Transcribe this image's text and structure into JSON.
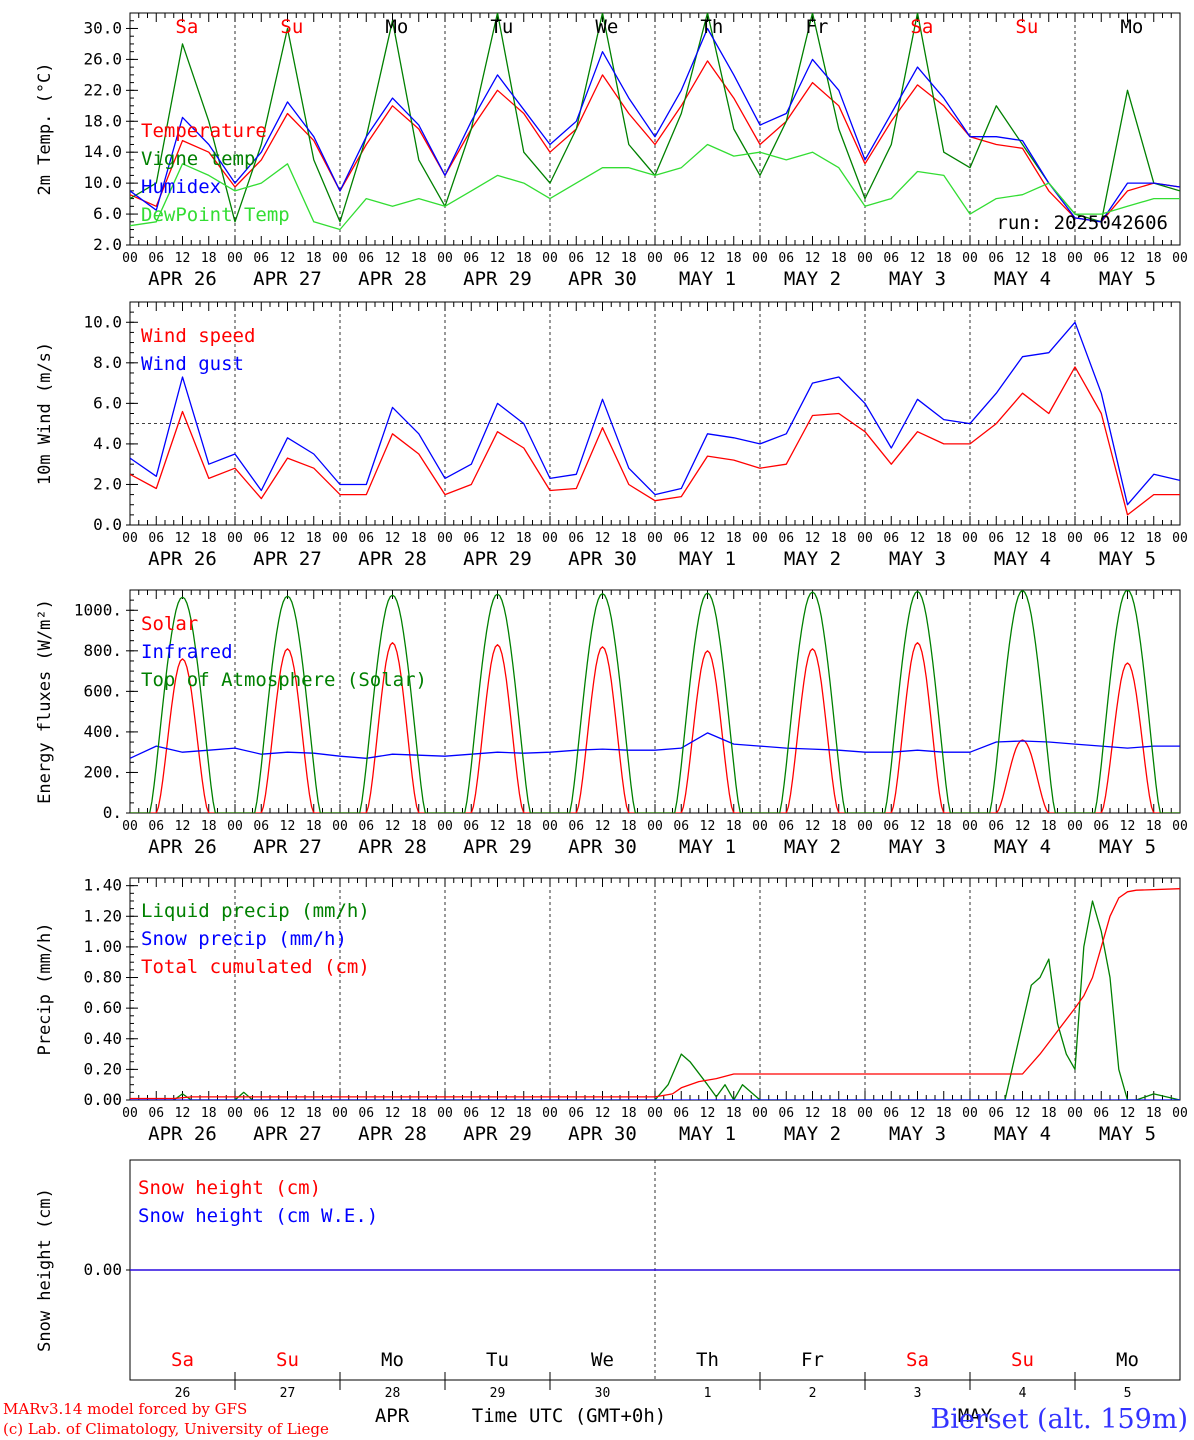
{
  "chart_data": [
    {
      "type": "line",
      "ylabel": "2m Temp. (°C)",
      "ylim": [
        2,
        32
      ],
      "yticks": [
        "30.0",
        "26.0",
        "22.0",
        "18.0",
        "14.0",
        "10.0",
        "6.0",
        "2.0"
      ],
      "yticks_values": [
        30,
        26,
        22,
        18,
        14,
        10,
        6,
        2
      ],
      "annotation": "run: 2025042606",
      "days": [
        {
          "label": "Sa",
          "color": "#ff0000"
        },
        {
          "label": "Su",
          "color": "#ff0000"
        },
        {
          "label": "Mo",
          "color": "#000000"
        },
        {
          "label": "Tu",
          "color": "#000000"
        },
        {
          "label": "We",
          "color": "#000000"
        },
        {
          "label": "Th",
          "color": "#000000"
        },
        {
          "label": "Fr",
          "color": "#000000"
        },
        {
          "label": "Sa",
          "color": "#ff0000"
        },
        {
          "label": "Su",
          "color": "#ff0000"
        },
        {
          "label": "Mo",
          "color": "#000000"
        }
      ],
      "series": [
        {
          "name": "Temperature",
          "color": "#ff0000",
          "x": [
            0,
            6,
            12,
            18,
            24,
            30,
            36,
            42,
            48,
            54,
            60,
            66,
            72,
            78,
            84,
            90,
            96,
            102,
            108,
            114,
            120,
            126,
            132,
            138,
            144,
            150,
            156,
            162,
            168,
            174,
            180,
            186,
            192,
            198,
            204,
            210,
            216,
            222,
            228,
            234,
            240
          ],
          "values": [
            8.5,
            7,
            15.5,
            14,
            9.5,
            13,
            19,
            15.5,
            9,
            15,
            20,
            17,
            11,
            17,
            22,
            19,
            14,
            17,
            24,
            19,
            15,
            20,
            25.8,
            21,
            15,
            18,
            23,
            20,
            12.5,
            18,
            22.7,
            20,
            16,
            15,
            14.5,
            9,
            5.5,
            5,
            9,
            10,
            9.5
          ]
        },
        {
          "name": "Vigne temp",
          "color": "#008000",
          "x": [
            0,
            6,
            12,
            18,
            24,
            30,
            36,
            42,
            48,
            54,
            60,
            66,
            72,
            78,
            84,
            90,
            96,
            102,
            108,
            114,
            120,
            126,
            132,
            138,
            144,
            150,
            156,
            162,
            168,
            174,
            180,
            186,
            192,
            198,
            204,
            210,
            216,
            222,
            228,
            234,
            240
          ],
          "values": [
            8,
            10,
            28,
            18,
            5,
            15,
            30,
            13,
            5,
            16,
            31,
            13,
            7,
            17,
            32,
            14,
            10,
            17,
            32,
            15,
            11,
            19,
            32,
            17,
            11,
            18,
            32,
            17,
            8,
            15,
            32,
            14,
            12,
            20,
            15,
            10,
            6,
            5,
            22,
            10,
            9
          ]
        },
        {
          "name": "Humidex",
          "color": "#0000ff",
          "x": [
            0,
            6,
            12,
            18,
            24,
            30,
            36,
            42,
            48,
            54,
            60,
            66,
            72,
            78,
            84,
            90,
            96,
            102,
            108,
            114,
            120,
            126,
            132,
            138,
            144,
            150,
            156,
            162,
            168,
            174,
            180,
            186,
            192,
            198,
            204,
            210,
            216,
            222,
            228,
            234,
            240
          ],
          "values": [
            9,
            6.5,
            18.5,
            15,
            10,
            14,
            20.5,
            16,
            9,
            16,
            21,
            17.5,
            11,
            18,
            24,
            19.5,
            15,
            18,
            27,
            21,
            16,
            22,
            30,
            24,
            17.5,
            19,
            26,
            22,
            13,
            19,
            25,
            21,
            16,
            16,
            15.5,
            10,
            5.5,
            5,
            10,
            10,
            9.5
          ]
        },
        {
          "name": "DewPoint Temp",
          "color": "#33dd33",
          "x": [
            0,
            6,
            12,
            18,
            24,
            30,
            36,
            42,
            48,
            54,
            60,
            66,
            72,
            78,
            84,
            90,
            96,
            102,
            108,
            114,
            120,
            126,
            132,
            138,
            144,
            150,
            156,
            162,
            168,
            174,
            180,
            186,
            192,
            198,
            204,
            210,
            216,
            222,
            228,
            234,
            240
          ],
          "values": [
            4.5,
            5,
            12.5,
            11,
            9,
            10,
            12.5,
            5,
            4,
            8,
            7,
            8,
            7,
            9,
            11,
            10,
            8,
            10,
            12,
            12,
            11,
            12,
            15,
            13.5,
            14,
            13,
            14,
            12,
            7,
            8,
            11.5,
            11,
            6,
            8,
            8.5,
            10,
            6,
            6,
            7,
            8,
            8
          ]
        }
      ]
    },
    {
      "type": "line",
      "ylabel": "10m Wind (m/s)",
      "ylim": [
        0,
        11
      ],
      "yticks": [
        "10.0",
        "8.0",
        "6.0",
        "4.0",
        "2.0",
        "0.0"
      ],
      "yticks_values": [
        10,
        8,
        6,
        4,
        2,
        0
      ],
      "reference_line": 5,
      "series": [
        {
          "name": "Wind speed",
          "color": "#ff0000",
          "x": [
            0,
            6,
            12,
            18,
            24,
            30,
            36,
            42,
            48,
            54,
            60,
            66,
            72,
            78,
            84,
            90,
            96,
            102,
            108,
            114,
            120,
            126,
            132,
            138,
            144,
            150,
            156,
            162,
            168,
            174,
            180,
            186,
            192,
            198,
            204,
            210,
            216,
            222,
            228,
            234,
            240
          ],
          "values": [
            2.5,
            1.8,
            5.6,
            2.3,
            2.8,
            1.3,
            3.3,
            2.8,
            1.5,
            1.5,
            4.5,
            3.5,
            1.5,
            2.0,
            4.6,
            3.8,
            1.7,
            1.8,
            4.8,
            2.0,
            1.2,
            1.4,
            3.4,
            3.2,
            2.8,
            3.0,
            5.4,
            5.5,
            4.6,
            3.0,
            4.6,
            4.0,
            4.0,
            5.0,
            6.5,
            5.5,
            7.8,
            5.5,
            0.5,
            1.5,
            1.5
          ]
        },
        {
          "name": "Wind gust",
          "color": "#0000ff",
          "x": [
            0,
            6,
            12,
            18,
            24,
            30,
            36,
            42,
            48,
            54,
            60,
            66,
            72,
            78,
            84,
            90,
            96,
            102,
            108,
            114,
            120,
            126,
            132,
            138,
            144,
            150,
            156,
            162,
            168,
            174,
            180,
            186,
            192,
            198,
            204,
            210,
            216,
            222,
            228,
            234,
            240
          ],
          "values": [
            3.3,
            2.4,
            7.3,
            3.0,
            3.5,
            1.7,
            4.3,
            3.5,
            2.0,
            2.0,
            5.8,
            4.5,
            2.3,
            3.0,
            6.0,
            5.0,
            2.3,
            2.5,
            6.2,
            2.8,
            1.5,
            1.8,
            4.5,
            4.3,
            4.0,
            4.5,
            7.0,
            7.3,
            6.0,
            3.8,
            6.2,
            5.2,
            5.0,
            6.5,
            8.3,
            8.5,
            10.0,
            6.5,
            1.0,
            2.5,
            2.2
          ]
        }
      ]
    },
    {
      "type": "line",
      "ylabel": "Energy fluxes (W/m²)",
      "ylim": [
        0,
        1100
      ],
      "yticks": [
        "1000.",
        "800.",
        "600.",
        "400.",
        "200.",
        "0."
      ],
      "yticks_values": [
        1000,
        800,
        600,
        400,
        200,
        0
      ],
      "series": [
        {
          "name": "Solar",
          "color": "#ff0000",
          "peak": [
            760,
            810,
            840,
            830,
            820,
            800,
            810,
            840,
            360,
            740
          ]
        },
        {
          "name": "Infrared",
          "color": "#0000ff",
          "x": [
            0,
            6,
            12,
            18,
            24,
            30,
            36,
            42,
            48,
            54,
            60,
            66,
            72,
            78,
            84,
            90,
            96,
            102,
            108,
            114,
            120,
            126,
            132,
            138,
            144,
            150,
            156,
            162,
            168,
            174,
            180,
            186,
            192,
            198,
            204,
            210,
            216,
            222,
            228,
            234,
            240
          ],
          "values": [
            270,
            330,
            300,
            310,
            320,
            290,
            300,
            295,
            280,
            270,
            290,
            285,
            280,
            290,
            300,
            295,
            300,
            310,
            315,
            310,
            310,
            320,
            395,
            340,
            330,
            320,
            315,
            310,
            300,
            300,
            310,
            300,
            300,
            350,
            355,
            350,
            340,
            330,
            320,
            330,
            330
          ]
        },
        {
          "name": "Top of Atmosphere (Solar)",
          "color": "#008000",
          "peak": [
            1065,
            1070,
            1075,
            1080,
            1082,
            1085,
            1090,
            1093,
            1097,
            1100
          ]
        }
      ]
    },
    {
      "type": "line",
      "ylabel": "Precip (mm/h)",
      "ylim": [
        0,
        1.45
      ],
      "yticks": [
        "1.40",
        "1.20",
        "1.00",
        "0.80",
        "0.60",
        "0.40",
        "0.20",
        "0.00"
      ],
      "yticks_values": [
        1.4,
        1.2,
        1.0,
        0.8,
        0.6,
        0.4,
        0.2,
        0.0
      ],
      "series": [
        {
          "name": "Liquid precip (mm/h)",
          "color": "#008000",
          "x": [
            0,
            10,
            12,
            14,
            24,
            26,
            28,
            120,
            123,
            126,
            128,
            132,
            134,
            136,
            138,
            140,
            144,
            200,
            204,
            206,
            208,
            210,
            212,
            214,
            216,
            218,
            220,
            222,
            224,
            226,
            228,
            230,
            234,
            240
          ],
          "values": [
            0,
            0,
            0.04,
            0,
            0,
            0.05,
            0,
            0,
            0.1,
            0.3,
            0.25,
            0.1,
            0.02,
            0.1,
            0.0,
            0.1,
            0,
            0,
            0.5,
            0.75,
            0.8,
            0.92,
            0.5,
            0.3,
            0.2,
            1.0,
            1.3,
            1.1,
            0.8,
            0.2,
            0,
            0,
            0.04,
            0
          ]
        },
        {
          "name": "Snow precip (mm/h)",
          "color": "#0000ff",
          "x": [
            0,
            240
          ],
          "values": [
            0,
            0
          ]
        },
        {
          "name": "Total cumulated (cm)",
          "color": "#ff0000",
          "x": [
            0,
            10,
            14,
            24,
            120,
            124,
            126,
            130,
            134,
            138,
            144,
            204,
            208,
            212,
            216,
            218,
            220,
            222,
            224,
            226,
            228,
            230,
            240
          ],
          "values": [
            0.01,
            0.01,
            0.02,
            0.02,
            0.02,
            0.04,
            0.08,
            0.12,
            0.14,
            0.17,
            0.17,
            0.17,
            0.3,
            0.45,
            0.6,
            0.68,
            0.8,
            1.0,
            1.2,
            1.32,
            1.36,
            1.37,
            1.38
          ]
        }
      ]
    },
    {
      "type": "line",
      "ylabel": "Snow height (cm)",
      "yticks": [
        "0.00"
      ],
      "yticks_values": [
        0
      ],
      "series": [
        {
          "name": "Snow height (cm)",
          "color": "#ff0000",
          "x": [
            0,
            240
          ],
          "values": [
            0,
            0
          ]
        },
        {
          "name": "Snow height (cm W.E.)",
          "color": "#0000ff",
          "x": [
            0,
            240
          ],
          "values": [
            0,
            0
          ]
        }
      ]
    }
  ],
  "date_labels": [
    "APR 26",
    "APR 27",
    "APR 28",
    "APR 29",
    "APR 30",
    "MAY  1",
    "MAY  2",
    "MAY  3",
    "MAY  4",
    "MAY  5"
  ],
  "hour_labels": [
    "00",
    "06",
    "12",
    "18"
  ],
  "bottom_days": [
    {
      "label": "Sa",
      "color": "#ff0000",
      "num": "26"
    },
    {
      "label": "Su",
      "color": "#ff0000",
      "num": "27"
    },
    {
      "label": "Mo",
      "color": "#000000",
      "num": "28"
    },
    {
      "label": "Tu",
      "color": "#000000",
      "num": "29"
    },
    {
      "label": "We",
      "color": "#000000",
      "num": "30"
    },
    {
      "label": "Th",
      "color": "#000000",
      "num": "1"
    },
    {
      "label": "Fr",
      "color": "#000000",
      "num": "2"
    },
    {
      "label": "Sa",
      "color": "#ff0000",
      "num": "3"
    },
    {
      "label": "Su",
      "color": "#ff0000",
      "num": "4"
    },
    {
      "label": "Mo",
      "color": "#000000",
      "num": "5"
    }
  ],
  "footer": {
    "model": "MARv3.14 model forced by GFS",
    "credit": "(c) Lab. of Climatology, University of Liege",
    "month_apr": "APR",
    "month_may": "MAY",
    "axis_title": "Time UTC (GMT+0h)",
    "station": "Bierset (alt. 159m)"
  }
}
